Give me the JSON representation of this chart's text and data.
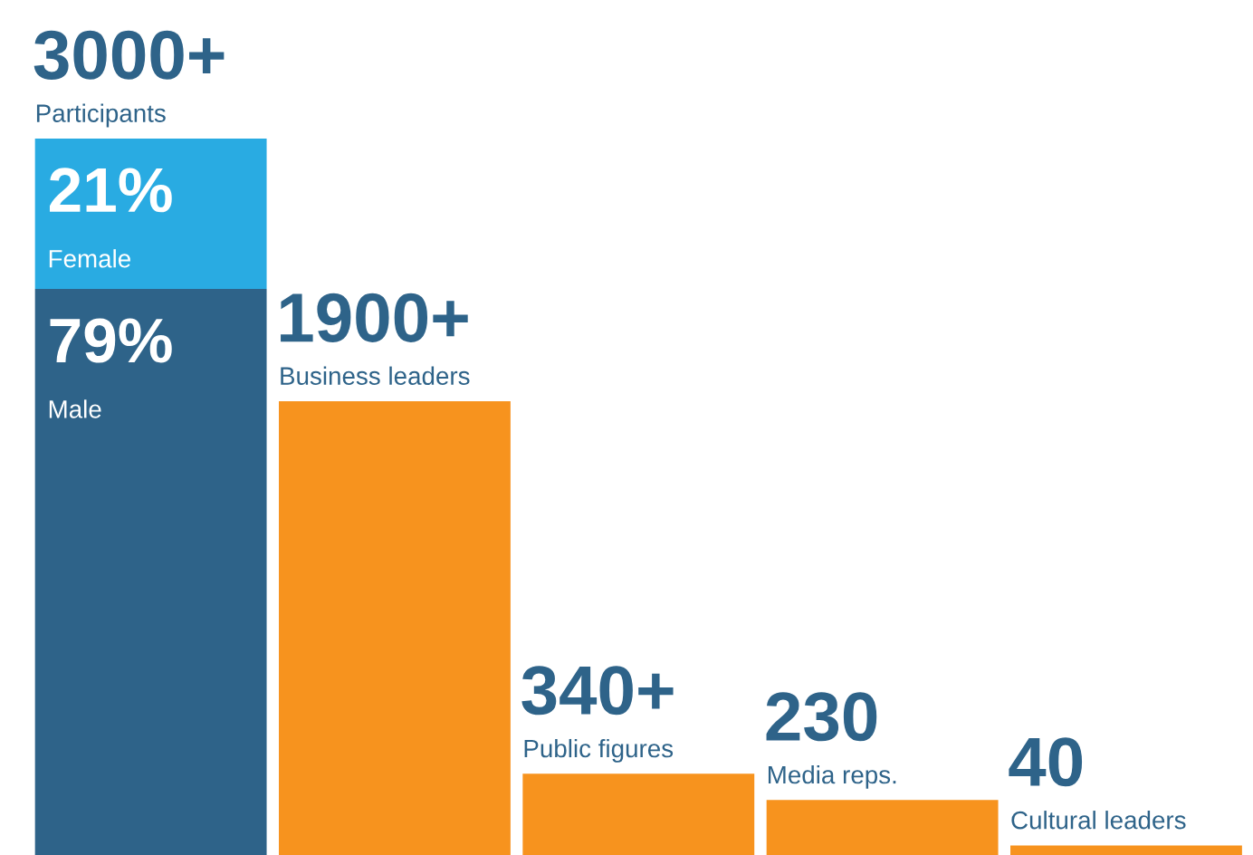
{
  "chart_data": {
    "type": "bar",
    "stacked": true,
    "tick_labels": false,
    "categories": [
      "Participants",
      "Business leaders",
      "Public figures",
      "Media reps.",
      "Cultural leaders"
    ],
    "series": [
      {
        "name": "Male",
        "colors": [
          "#2e6389",
          "#f7931e",
          "#f7931e",
          "#f7931e",
          "#f7931e"
        ],
        "values": [
          2370,
          1900,
          340,
          230,
          40
        ],
        "value_labels": [
          null,
          "1900+",
          "340+",
          "230",
          "40"
        ]
      },
      {
        "name": "Female",
        "color": "#29abe2",
        "values": [
          630,
          null,
          null,
          null,
          null
        ]
      }
    ],
    "totals": [
      "3000+",
      null,
      null,
      null,
      null
    ],
    "annotations": [
      {
        "text": "21%",
        "x": "Participants",
        "y": 3000
      },
      {
        "text": "79%",
        "x": "Participants",
        "y": 2370
      }
    ]
  }
}
